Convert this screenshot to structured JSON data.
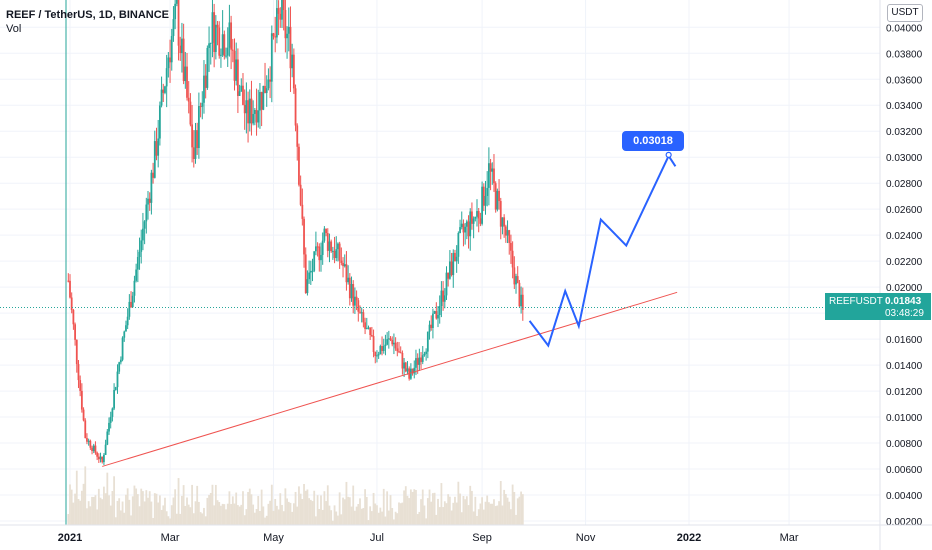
{
  "header": {
    "symbol_title": "REEF / TetherUS, 1D, BINANCE",
    "volume_label": "Vol",
    "currency": "USDT"
  },
  "price_badge": {
    "symbol": "REEFUSDT",
    "price": "0.01843",
    "countdown": "03:48:29"
  },
  "target_label": "0.03018",
  "colors": {
    "up": "#26a69a",
    "down": "#ef5350",
    "trendline": "#ef5350",
    "projection": "#2962ff",
    "volume": "#e8e0d4",
    "grid": "#f0f3fa"
  },
  "chart_data": {
    "type": "candlestick",
    "ylim": [
      0.002,
      0.0421
    ],
    "yticks": [
      "0.04000",
      "0.03800",
      "0.03600",
      "0.03400",
      "0.03200",
      "0.03000",
      "0.02800",
      "0.02600",
      "0.02400",
      "0.02200",
      "0.02000",
      "0.01800",
      "0.01600",
      "0.01400",
      "0.01200",
      "0.01000",
      "0.00800",
      "0.00600",
      "0.00400",
      "0.00200"
    ],
    "xticks": [
      "2021",
      "Mar",
      "May",
      "Jul",
      "Sep",
      "Nov",
      "2022",
      "Mar"
    ],
    "xtick_dates": [
      "2021-01-01",
      "2021-03-01",
      "2021-05-01",
      "2021-07-01",
      "2021-09-01",
      "2021-11-01",
      "2022-01-01",
      "2022-03-01"
    ],
    "price_close": [
      [
        "2020-12-31",
        0.0205
      ],
      [
        "2021-01-10",
        0.0085
      ],
      [
        "2021-01-20",
        0.0065
      ],
      [
        "2021-01-31",
        0.015
      ],
      [
        "2021-02-10",
        0.022
      ],
      [
        "2021-02-20",
        0.03
      ],
      [
        "2021-02-28",
        0.038
      ],
      [
        "2021-03-05",
        0.041
      ],
      [
        "2021-03-15",
        0.03
      ],
      [
        "2021-03-25",
        0.04
      ],
      [
        "2021-04-05",
        0.039
      ],
      [
        "2021-04-15",
        0.033
      ],
      [
        "2021-04-25",
        0.035
      ],
      [
        "2021-05-05",
        0.041
      ],
      [
        "2021-05-12",
        0.038
      ],
      [
        "2021-05-20",
        0.02
      ],
      [
        "2021-05-31",
        0.024
      ],
      [
        "2021-06-10",
        0.022
      ],
      [
        "2021-06-20",
        0.018
      ],
      [
        "2021-06-30",
        0.015
      ],
      [
        "2021-07-10",
        0.016
      ],
      [
        "2021-07-20",
        0.013
      ],
      [
        "2021-07-31",
        0.016
      ],
      [
        "2021-08-10",
        0.02
      ],
      [
        "2021-08-20",
        0.024
      ],
      [
        "2021-08-31",
        0.026
      ],
      [
        "2021-09-05",
        0.029
      ],
      [
        "2021-09-15",
        0.024
      ],
      [
        "2021-09-25",
        0.018
      ]
    ],
    "trendline": [
      [
        "2021-01-20",
        0.0062
      ],
      [
        "2021-12-25",
        0.0196
      ]
    ],
    "projection_path": [
      [
        "2021-09-29",
        0.0174
      ],
      [
        "2021-10-10",
        0.0155
      ],
      [
        "2021-10-20",
        0.0197
      ],
      [
        "2021-10-28",
        0.017
      ],
      [
        "2021-11-10",
        0.0252
      ],
      [
        "2021-11-25",
        0.0232
      ],
      [
        "2021-12-20",
        0.0301
      ],
      [
        "2021-12-24",
        0.0293
      ]
    ],
    "target_price": 0.03018,
    "current_price": 0.01843
  }
}
